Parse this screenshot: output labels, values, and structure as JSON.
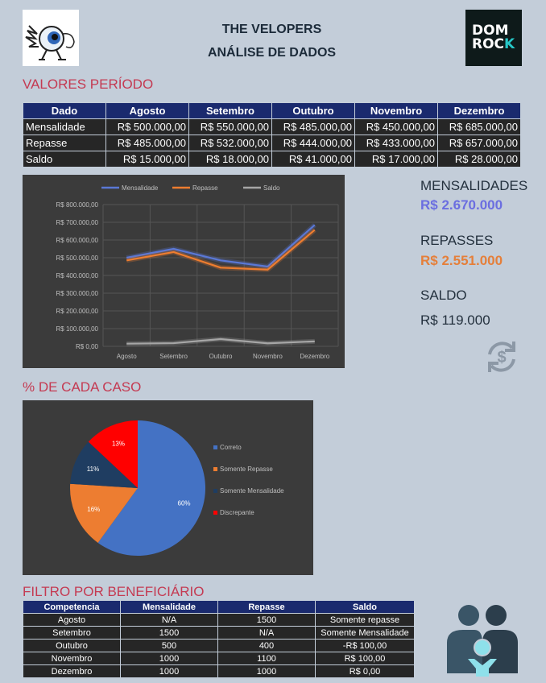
{
  "header": {
    "title_line1": "THE VELOPERS",
    "title_line2": "ANÁLISE DE DADOS",
    "logo_right_line1": "DOM",
    "logo_right_line2": "ROC",
    "logo_right_k": "K"
  },
  "sections": {
    "valores": "VALORES PERÍODO",
    "percent": "% DE CADA CASO",
    "filtro": "FILTRO POR BENEFICIÁRIO"
  },
  "table1": {
    "headers": [
      "Dado",
      "Agosto",
      "Setembro",
      "Outubro",
      "Novembro",
      "Dezembro"
    ],
    "rows": [
      [
        "Mensalidade",
        "R$ 500.000,00",
        "R$ 550.000,00",
        "R$ 485.000,00",
        "R$ 450.000,00",
        "R$ 685.000,00"
      ],
      [
        "Repasse",
        "R$ 485.000,00",
        "R$ 532.000,00",
        "R$ 444.000,00",
        "R$ 433.000,00",
        "R$ 657.000,00"
      ],
      [
        "Saldo",
        "R$ 15.000,00",
        "R$ 18.000,00",
        "R$ 41.000,00",
        "R$ 17.000,00",
        "R$ 28.000,00"
      ]
    ]
  },
  "kpis": {
    "mensalidades_label": "MENSALIDADES",
    "mensalidades_value": "R$ 2.670.000",
    "repasses_label": "REPASSES",
    "repasses_value": "R$ 2.551.000",
    "saldo_label": "SALDO",
    "saldo_value": "R$ 119.000",
    "colors": {
      "mensalidades": "#6b6ee0",
      "repasses": "#e57f3a",
      "saldo": "#24313e"
    }
  },
  "table2": {
    "headers": [
      "Competencia",
      "Mensalidade",
      "Repasse",
      "Saldo"
    ],
    "rows": [
      [
        "Agosto",
        "N/A",
        "1500",
        "Somente repasse"
      ],
      [
        "Setembro",
        "1500",
        "N/A",
        "Somente Mensalidade"
      ],
      [
        "Outubro",
        "500",
        "400",
        "-R$ 100,00"
      ],
      [
        "Novembro",
        "1000",
        "1100",
        "R$ 100,00"
      ],
      [
        "Dezembro",
        "1000",
        "1000",
        "R$ 0,00"
      ]
    ]
  },
  "chart_data": [
    {
      "type": "line",
      "categories": [
        "Agosto",
        "Setembro",
        "Outubro",
        "Novembro",
        "Dezembro"
      ],
      "series": [
        {
          "name": "Mensalidade",
          "values": [
            500000,
            550000,
            485000,
            450000,
            685000
          ],
          "color": "#5a78d6"
        },
        {
          "name": "Repasse",
          "values": [
            485000,
            532000,
            444000,
            433000,
            657000
          ],
          "color": "#ee7d2f"
        },
        {
          "name": "Saldo",
          "values": [
            15000,
            18000,
            41000,
            17000,
            28000
          ],
          "color": "#a6a6a6"
        }
      ],
      "ylim": [
        0,
        800000
      ],
      "yticks": [
        "R$ 0,00",
        "R$ 100.000,00",
        "R$ 200.000,00",
        "R$ 300.000,00",
        "R$ 400.000,00",
        "R$ 500.000,00",
        "R$ 600.000,00",
        "R$ 700.000,00",
        "R$ 800.000,00"
      ],
      "grid": true,
      "legend": "top"
    },
    {
      "type": "pie",
      "categories": [
        "Correto",
        "Somente Repasse",
        "Somente Mensalidade",
        "Discrepante"
      ],
      "values": [
        60,
        16,
        11,
        13
      ],
      "labels": [
        "60%",
        "16%",
        "11%",
        "13%"
      ],
      "colors": [
        "#4472c4",
        "#ed7d31",
        "#1f3d61",
        "#ff0000"
      ],
      "legend": "right"
    }
  ]
}
